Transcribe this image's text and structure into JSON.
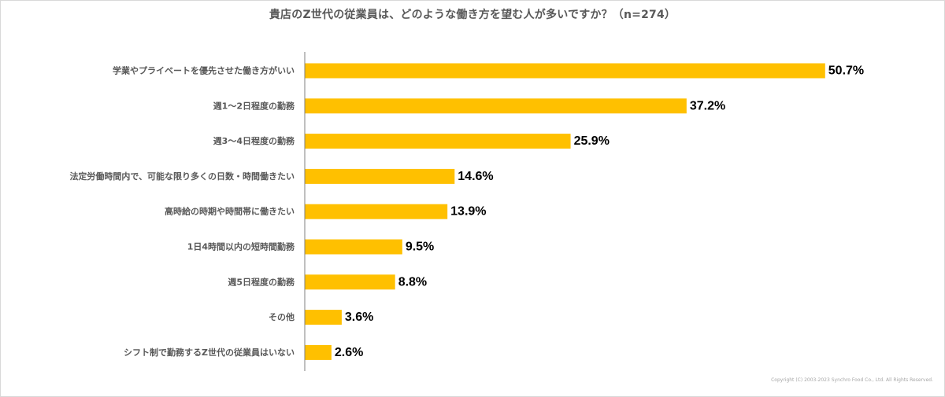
{
  "chart_data": {
    "type": "bar",
    "orientation": "horizontal",
    "title": "貴店のZ世代の従業員は、どのような働き方を望む人が多いですか？（n=274）",
    "categories": [
      "学業やプライベートを優先させた働き方がいい",
      "週1～2日程度の勤務",
      "週3～4日程度の勤務",
      "法定労働時間内で、可能な限り多くの日数・時間働きたい",
      "高時給の時期や時間帯に働きたい",
      "1日4時間以内の短時間勤務",
      "週5日程度の勤務",
      "その他",
      "シフト制で勤務するZ世代の従業員はいない"
    ],
    "values": [
      50.7,
      37.2,
      25.9,
      14.6,
      13.9,
      9.5,
      8.8,
      3.6,
      2.6
    ],
    "value_labels": [
      "50.7%",
      "37.2%",
      "25.9%",
      "14.6%",
      "13.9%",
      "9.5%",
      "8.8%",
      "3.6%",
      "2.6%"
    ],
    "unit": "%",
    "xlim": [
      0,
      60
    ],
    "bar_color": "#FFC000",
    "axis_color": "#7f7f7f",
    "grid": false,
    "legend": "none"
  },
  "footer": {
    "copyright": "Copyright (C) 2003-2023  Synchro Food Co., Ltd. All Rights Reserved."
  }
}
